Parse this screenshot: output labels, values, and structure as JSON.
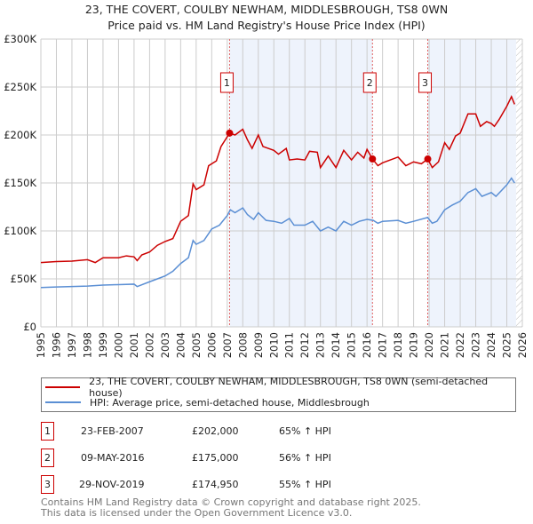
{
  "chart_data": {
    "type": "line",
    "title": "23, THE COVERT, COULBY NEWHAM, MIDDLESBROUGH, TS8 0WN",
    "subtitle": "Price paid vs. HM Land Registry's House Price Index (HPI)",
    "xlim": [
      1995,
      2026
    ],
    "ylim": [
      0,
      300000
    ],
    "x_ticks": [
      "1995",
      "1996",
      "1997",
      "1998",
      "1999",
      "2000",
      "2001",
      "2002",
      "2003",
      "2004",
      "2005",
      "2006",
      "2007",
      "2008",
      "2009",
      "2010",
      "2011",
      "2012",
      "2013",
      "2014",
      "2015",
      "2016",
      "2017",
      "2018",
      "2019",
      "2020",
      "2021",
      "2022",
      "2023",
      "2024",
      "2025",
      "2026"
    ],
    "y_ticks": [
      {
        "v": 0,
        "label": "£0"
      },
      {
        "v": 50000,
        "label": "£50K"
      },
      {
        "v": 100000,
        "label": "£100K"
      },
      {
        "v": 150000,
        "label": "£150K"
      },
      {
        "v": 200000,
        "label": "£200K"
      },
      {
        "v": 250000,
        "label": "£250K"
      },
      {
        "v": 300000,
        "label": "£300K"
      }
    ],
    "grid": true,
    "shaded_ranges": [
      [
        2007.15,
        2016.35
      ],
      [
        2019.91,
        2025.6
      ]
    ],
    "hatched_from": 2025.6,
    "series": [
      {
        "name": "23, THE COVERT, COULBY NEWHAM, MIDDLESBROUGH, TS8 0WN (semi-detached house)",
        "color": "#cc0000",
        "x": [
          1995,
          1996,
          1997,
          1998,
          1998.5,
          1999,
          2000,
          2000.5,
          2001,
          2001.2,
          2001.5,
          2002,
          2002.5,
          2003,
          2003.5,
          2004,
          2004.5,
          2004.8,
          2005,
          2005.5,
          2005.8,
          2006.3,
          2006.6,
          2007.15,
          2007.5,
          2008,
          2008.3,
          2008.6,
          2009,
          2009.3,
          2010,
          2010.3,
          2010.8,
          2011,
          2011.5,
          2012,
          2012.3,
          2012.8,
          2013,
          2013.5,
          2014,
          2014.5,
          2015,
          2015.4,
          2015.8,
          2016,
          2016.35,
          2016.7,
          2017,
          2018,
          2018.5,
          2019,
          2019.5,
          2019.91,
          2020.2,
          2020.6,
          2021,
          2021.3,
          2021.7,
          2022,
          2022.5,
          2023,
          2023.3,
          2023.7,
          2024,
          2024.2,
          2024.5,
          2025,
          2025.3,
          2025.5
        ],
        "y": [
          67000,
          68000,
          68500,
          70000,
          67000,
          72000,
          72000,
          74000,
          73000,
          69000,
          75000,
          78000,
          85000,
          89000,
          92000,
          110000,
          116000,
          149000,
          143000,
          148000,
          168000,
          173000,
          188000,
          202000,
          200000,
          206000,
          195000,
          186000,
          200000,
          188000,
          184000,
          180000,
          186000,
          174000,
          175000,
          174000,
          183000,
          182000,
          166000,
          178000,
          166000,
          184000,
          174000,
          182000,
          176000,
          185000,
          175000,
          168000,
          171000,
          177000,
          168000,
          172000,
          170000,
          174950,
          166000,
          172000,
          192000,
          185000,
          199000,
          202000,
          222000,
          222000,
          209000,
          214000,
          212000,
          209000,
          216000,
          230000,
          240000,
          232000
        ]
      },
      {
        "name": "HPI: Average price, semi-detached house, Middlesbrough",
        "color": "#5b8fd4",
        "x": [
          1995,
          1996,
          1997,
          1998,
          1999,
          2000,
          2001,
          2001.2,
          2002,
          2002.5,
          2003,
          2003.5,
          2004,
          2004.5,
          2004.8,
          2005,
          2005.5,
          2006,
          2006.5,
          2007,
          2007.2,
          2007.5,
          2008,
          2008.3,
          2008.7,
          2009,
          2009.5,
          2010,
          2010.5,
          2011,
          2011.3,
          2012,
          2012.5,
          2013,
          2013.5,
          2014,
          2014.5,
          2015,
          2015.5,
          2016,
          2016.4,
          2016.7,
          2017,
          2018,
          2018.5,
          2019,
          2019.9,
          2020.2,
          2020.5,
          2021,
          2021.5,
          2022,
          2022.5,
          2023,
          2023.4,
          2024,
          2024.3,
          2025,
          2025.3,
          2025.5
        ],
        "y": [
          41000,
          41500,
          42000,
          42500,
          43500,
          44000,
          44500,
          42000,
          47000,
          50000,
          53000,
          58000,
          66000,
          72000,
          90000,
          86000,
          90000,
          102000,
          106000,
          116000,
          122000,
          119000,
          124000,
          117000,
          112000,
          119000,
          111000,
          110000,
          108000,
          113000,
          106000,
          106000,
          110000,
          100000,
          104000,
          100000,
          110000,
          106000,
          110000,
          112000,
          111000,
          108000,
          110000,
          111000,
          108000,
          110000,
          114000,
          108000,
          110000,
          122000,
          127000,
          131000,
          140000,
          144000,
          136000,
          140000,
          136000,
          148000,
          155000,
          150000
        ]
      }
    ],
    "sales": [
      {
        "id": "1",
        "x": 2007.15,
        "date": "23-FEB-2007",
        "price_value": 202000,
        "price": "£202,000",
        "hpi": "65% ↑ HPI"
      },
      {
        "id": "2",
        "x": 2016.35,
        "date": "09-MAY-2016",
        "price_value": 175000,
        "price": "£175,000",
        "hpi": "56% ↑ HPI"
      },
      {
        "id": "3",
        "x": 2019.91,
        "date": "29-NOV-2019",
        "price_value": 174950,
        "price": "£174,950",
        "hpi": "55% ↑ HPI"
      }
    ],
    "legend_position": "below"
  },
  "footer": {
    "line1": "Contains HM Land Registry data © Crown copyright and database right 2025.",
    "line2": "This data is licensed under the Open Government Licence v3.0."
  }
}
